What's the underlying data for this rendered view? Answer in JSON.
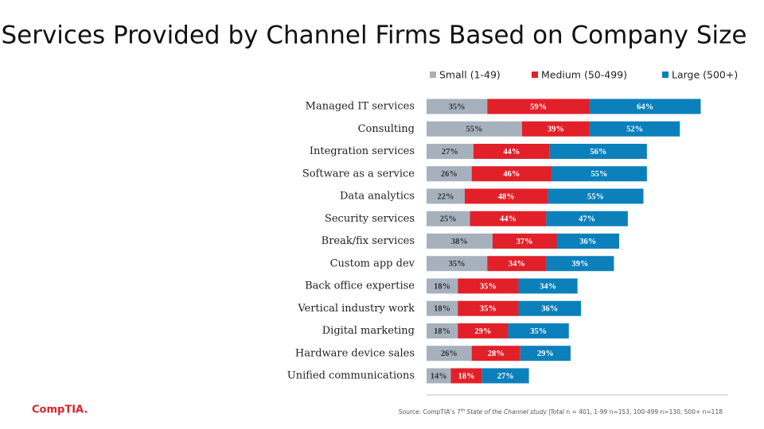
{
  "chart_data": {
    "type": "stacked-bar-horizontal",
    "title": "Services Provided by Channel Firms Based on Company Size",
    "categories": [
      "Managed IT services",
      "Consulting",
      "Integration services",
      "Software as a service",
      "Data analytics",
      "Security services",
      "Break/fix services",
      "Custom app dev",
      "Back office expertise",
      "Vertical industry work",
      "Digital marketing",
      "Hardware device sales",
      "Unified communications"
    ],
    "series": [
      {
        "name": "Small (1-49)",
        "color": "#a7b1bd",
        "values": [
          35,
          55,
          27,
          26,
          22,
          25,
          38,
          35,
          18,
          18,
          18,
          26,
          14
        ],
        "value_labels": [
          "35%",
          "55%",
          "27%",
          "26%",
          "22%",
          "25%",
          "38%",
          "35%",
          "18%",
          "18%",
          "18%",
          "26%",
          "14%"
        ]
      },
      {
        "name": "Medium (50-499)",
        "color": "#e2202a",
        "values": [
          59,
          39,
          44,
          46,
          48,
          44,
          37,
          34,
          35,
          35,
          29,
          28,
          18
        ],
        "value_labels": [
          "59%",
          "39%",
          "44%",
          "46%",
          "48%",
          "44%",
          "37%",
          "34%",
          "35%",
          "35%",
          "29%",
          "28%",
          "18%"
        ]
      },
      {
        "name": "Large (500+)",
        "color": "#0b80bb",
        "values": [
          64,
          52,
          56,
          55,
          55,
          47,
          36,
          39,
          34,
          36,
          35,
          29,
          27
        ],
        "value_labels": [
          "64%",
          "52%",
          "56%",
          "55%",
          "55%",
          "47%",
          "36%",
          "39%",
          "34%",
          "36%",
          "35%",
          "29%",
          "27%"
        ]
      }
    ],
    "legend": "top-right"
  },
  "logo": "CompTIA.",
  "source": [
    "Source: CompTIA’s 7",
    "th",
    "State of the Channel study",
    "|Total n = 401, 1-99 n=153, 100-499 n=130, 500+ n=118"
  ]
}
